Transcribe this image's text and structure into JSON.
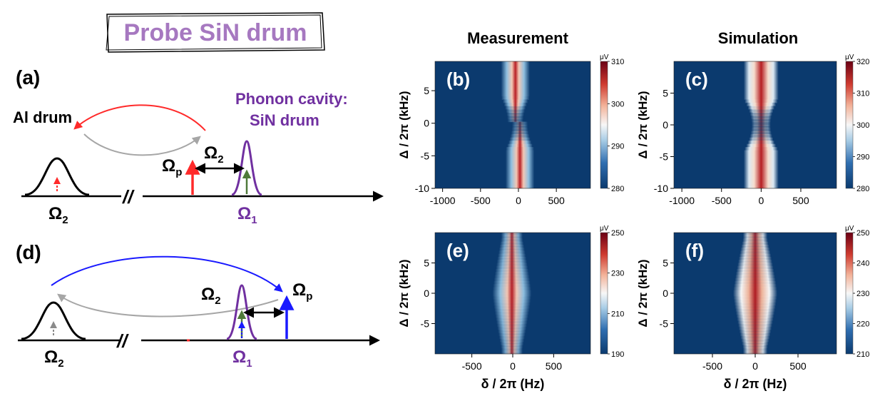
{
  "title_box": {
    "text": "Probe SiN drum",
    "color": "#a678c0"
  },
  "column_titles": {
    "measurement": "Measurement",
    "simulation": "Simulation"
  },
  "schematic_top": {
    "label": "(a)",
    "al_drum": "Al drum",
    "phonon_cavity_line1": "Phonon cavity:",
    "phonon_cavity_line2": "SiN drum",
    "omega2_gap": "Ω",
    "omega2_gap_sub": "2",
    "omega_p": "Ω",
    "omega_p_sub": "p",
    "omega2_axis": "Ω",
    "omega2_axis_sub": "2",
    "omega1_axis": "Ω",
    "omega1_axis_sub": "1",
    "break_mark": "//"
  },
  "schematic_bottom": {
    "label": "(d)",
    "omega2_gap": "Ω",
    "omega2_gap_sub": "2",
    "omega_p": "Ω",
    "omega_p_sub": "p",
    "omega2_axis": "Ω",
    "omega2_axis_sub": "2",
    "omega1_axis": "Ω",
    "omega1_axis_sub": "1",
    "break_mark": "//"
  },
  "colors": {
    "purple": "#7030a0",
    "red": "#ff2a2a",
    "blue": "#1a1aff",
    "gray": "#a6a6a6",
    "green": "#4f7a3a",
    "heat_low": "#0b3a6e",
    "heat_mid": "#f7f7f7",
    "heat_high": "#8b0a14"
  },
  "chart_data": [
    {
      "panel": "(b)",
      "type": "heatmap",
      "title": "Measurement",
      "xlabel": "",
      "ylabel": "Δ / 2π (kHz)",
      "xlim": [
        -1100,
        950
      ],
      "ylim": [
        -10,
        9.5
      ],
      "xticks": [
        "-1000",
        "-500",
        "0",
        "500"
      ],
      "yticks": [
        "5",
        "0",
        "-5",
        "-10"
      ],
      "colorbar": {
        "unit": "μV",
        "min": 280,
        "max": 310,
        "ticks": [
          "310",
          "300",
          "290",
          "280"
        ]
      }
    },
    {
      "panel": "(c)",
      "type": "heatmap",
      "title": "Simulation",
      "xlabel": "",
      "ylabel": "Δ / 2π (kHz)",
      "xlim": [
        -1100,
        950
      ],
      "ylim": [
        -10,
        10
      ],
      "xticks": [
        "-1000",
        "-500",
        "0",
        "500"
      ],
      "yticks": [
        "5",
        "0",
        "-5",
        "-10"
      ],
      "colorbar": {
        "unit": "μV",
        "min": 280,
        "max": 320,
        "ticks": [
          "320",
          "310",
          "300",
          "290",
          "280"
        ]
      }
    },
    {
      "panel": "(e)",
      "type": "heatmap",
      "title": "",
      "xlabel": "δ / 2π (Hz)",
      "ylabel": "Δ / 2π (kHz)",
      "xlim": [
        -950,
        950
      ],
      "ylim": [
        -10,
        10
      ],
      "xticks": [
        "-500",
        "0",
        "500"
      ],
      "yticks": [
        "5",
        "0",
        "-5"
      ],
      "colorbar": {
        "unit": "μV",
        "min": 190,
        "max": 250,
        "ticks": [
          "250",
          "230",
          "210",
          "190"
        ]
      }
    },
    {
      "panel": "(f)",
      "type": "heatmap",
      "title": "",
      "xlabel": "δ / 2π (Hz)",
      "ylabel": "Δ / 2π (kHz)",
      "xlim": [
        -950,
        950
      ],
      "ylim": [
        -10,
        10
      ],
      "xticks": [
        "-500",
        "0",
        "500"
      ],
      "yticks": [
        "5",
        "0",
        "-5"
      ],
      "colorbar": {
        "unit": "μV",
        "min": 210,
        "max": 250,
        "ticks": [
          "250",
          "240",
          "230",
          "220",
          "210"
        ]
      }
    }
  ]
}
